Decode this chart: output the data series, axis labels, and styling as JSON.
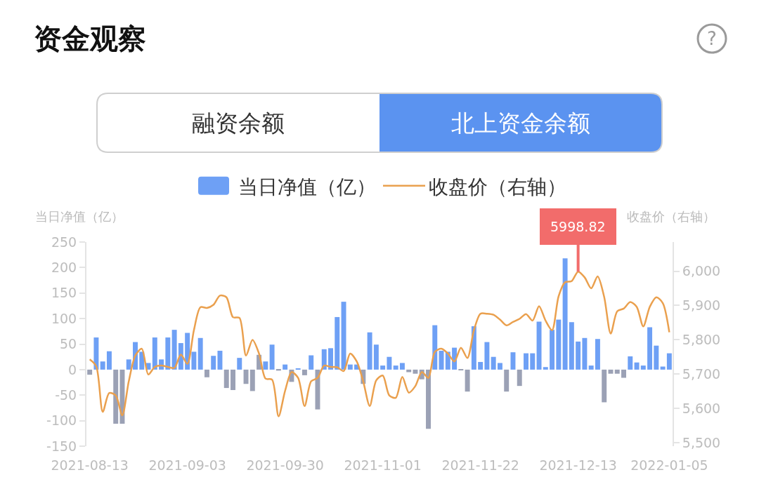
{
  "chart_data": {
    "type": "bar",
    "title": "资金观察",
    "ylabel": "当日净值（亿）",
    "y2label": "收盘价（右轴）",
    "annotations": [
      "融资余额",
      "北上资金余额",
      "?"
    ],
    "categories": [
      "2021-08-13",
      null,
      null,
      null,
      null,
      null,
      null,
      null,
      null,
      null,
      null,
      null,
      null,
      null,
      null,
      "2021-09-03",
      null,
      null,
      null,
      null,
      null,
      null,
      null,
      null,
      null,
      null,
      null,
      null,
      null,
      null,
      "2021-09-30",
      null,
      null,
      null,
      null,
      null,
      null,
      null,
      null,
      null,
      null,
      null,
      null,
      null,
      null,
      "2021-11-01",
      null,
      null,
      null,
      null,
      null,
      null,
      null,
      null,
      null,
      null,
      null,
      null,
      null,
      null,
      "2021-11-22",
      null,
      null,
      null,
      null,
      null,
      null,
      null,
      null,
      null,
      null,
      null,
      null,
      null,
      null,
      "2021-12-13",
      null,
      null,
      null,
      null,
      null,
      null,
      null,
      null,
      null,
      null,
      null,
      null,
      null,
      "2022-01-05"
    ],
    "series": [
      {
        "name": "当日净值（亿）",
        "color": "#6ea0f5",
        "values": [
          -10,
          63,
          16,
          36,
          -106,
          -106,
          20,
          54,
          35,
          13,
          63,
          20,
          63,
          78,
          52,
          72,
          35,
          62,
          -15,
          27,
          37,
          -36,
          -40,
          23,
          -28,
          -42,
          29,
          16,
          49,
          -2,
          10,
          -24,
          2,
          -11,
          28,
          -78,
          40,
          42,
          103,
          133,
          10,
          10,
          -28,
          73,
          49,
          8,
          25,
          8,
          13,
          -5,
          -8,
          -19,
          -116,
          87,
          37,
          35,
          43,
          -1,
          -43,
          85,
          15,
          54,
          25,
          13,
          -43,
          34,
          -32,
          32,
          32,
          94,
          5,
          78,
          98,
          218,
          93,
          55,
          62,
          8,
          60,
          -64,
          -8,
          -8,
          -16,
          26,
          14,
          8,
          83,
          47,
          6,
          32
        ],
        "colors": [
          "#9ba1b5",
          "#6ea0f5",
          "#6ea0f5",
          "#6ea0f5",
          "#9ba1b5",
          "#9ba1b5",
          "#6ea0f5",
          "#6ea0f5",
          "#6ea0f5",
          "#6ea0f5",
          "#6ea0f5",
          "#6ea0f5",
          "#6ea0f5",
          "#6ea0f5",
          "#6ea0f5",
          "#6ea0f5",
          "#6ea0f5",
          "#6ea0f5",
          "#9ba1b5",
          "#6ea0f5",
          "#6ea0f5",
          "#9ba1b5",
          "#9ba1b5",
          "#6ea0f5",
          "#9ba1b5",
          "#9ba1b5",
          "#9ba1b5",
          "#6ea0f5",
          "#6ea0f5",
          "#9ba1b5",
          "#6ea0f5",
          "#9ba1b5",
          "#6ea0f5",
          "#9ba1b5",
          "#6ea0f5",
          "#9ba1b5",
          "#6ea0f5",
          "#6ea0f5",
          "#6ea0f5",
          "#6ea0f5",
          "#6ea0f5",
          "#6ea0f5",
          "#9ba1b5",
          "#6ea0f5",
          "#6ea0f5",
          "#6ea0f5",
          "#6ea0f5",
          "#6ea0f5",
          "#6ea0f5",
          "#9ba1b5",
          "#9ba1b5",
          "#9ba1b5",
          "#9ba1b5",
          "#6ea0f5",
          "#6ea0f5",
          "#6ea0f5",
          "#6ea0f5",
          "#9ba1b5",
          "#9ba1b5",
          "#6ea0f5",
          "#6ea0f5",
          "#6ea0f5",
          "#6ea0f5",
          "#6ea0f5",
          "#9ba1b5",
          "#6ea0f5",
          "#9ba1b5",
          "#6ea0f5",
          "#6ea0f5",
          "#6ea0f5",
          "#6ea0f5",
          "#6ea0f5",
          "#6ea0f5",
          "#6ea0f5",
          "#6ea0f5",
          "#6ea0f5",
          "#6ea0f5",
          "#6ea0f5",
          "#6ea0f5",
          "#9ba1b5",
          "#9ba1b5",
          "#9ba1b5",
          "#9ba1b5",
          "#6ea0f5",
          "#6ea0f5",
          "#6ea0f5",
          "#6ea0f5",
          "#6ea0f5",
          "#6ea0f5",
          "#6ea0f5"
        ]
      },
      {
        "name": "收盘价（右轴）",
        "type": "line",
        "axis": "y2",
        "color": "#eaa04e",
        "values": [
          5743,
          5723,
          5590,
          5645,
          5638,
          5580,
          5679,
          5754,
          5774,
          5699,
          5721,
          5725,
          5721,
          5718,
          5757,
          5730,
          5828,
          5895,
          5893,
          5902,
          5929,
          5924,
          5866,
          5864,
          5754,
          5800,
          5760,
          5687,
          5684,
          5577,
          5651,
          5706,
          5689,
          5607,
          5679,
          5689,
          5725,
          5721,
          5720,
          5709,
          5760,
          5737,
          5679,
          5607,
          5682,
          5696,
          5638,
          5631,
          5692,
          5646,
          5665,
          5706,
          5689,
          5765,
          5774,
          5760,
          5737,
          5777,
          5747,
          5828,
          5876,
          5876,
          5873,
          5859,
          5842,
          5852,
          5861,
          5875,
          5856,
          5898,
          5856,
          5828,
          5927,
          5968,
          5971,
          5998.82,
          5982,
          5950,
          5985,
          5925,
          5818,
          5883,
          5891,
          5910,
          5896,
          5839,
          5896,
          5924,
          5907,
          5822
        ],
        "value_labels": [
          null,
          null,
          null,
          null,
          null,
          null,
          null,
          null,
          null,
          null,
          null,
          null,
          null,
          null,
          null,
          null,
          null,
          null,
          null,
          null,
          null,
          null,
          null,
          null,
          null,
          null,
          null,
          null,
          null,
          null,
          null,
          null,
          null,
          null,
          null,
          null,
          null,
          null,
          null,
          null,
          null,
          null,
          null,
          null,
          null,
          null,
          null,
          null,
          null,
          null,
          null,
          null,
          null,
          null,
          null,
          null,
          null,
          null,
          null,
          null,
          null,
          null,
          null,
          null,
          null,
          null,
          null,
          null,
          null,
          null,
          null,
          null,
          null,
          null,
          null,
          "5998.82",
          null,
          null,
          null,
          null,
          null,
          null,
          null,
          null,
          null,
          null,
          null,
          null,
          null,
          null
        ]
      }
    ],
    "ylim": [
      -150,
      250
    ],
    "yticks": [
      -150,
      -100,
      -50,
      0,
      50,
      100,
      150,
      200,
      250
    ],
    "y2lim": [
      5490,
      6085
    ],
    "y2ticks": [
      {
        "value": 5500,
        "label": "5,500"
      },
      {
        "value": 5600,
        "label": "5,600"
      },
      {
        "value": 5700,
        "label": "5,700"
      },
      {
        "value": 5800,
        "label": "5,800"
      },
      {
        "value": 5900,
        "label": "5,900"
      },
      {
        "value": 6000,
        "label": "6,000"
      }
    ],
    "grid": false,
    "legend": "top"
  }
}
